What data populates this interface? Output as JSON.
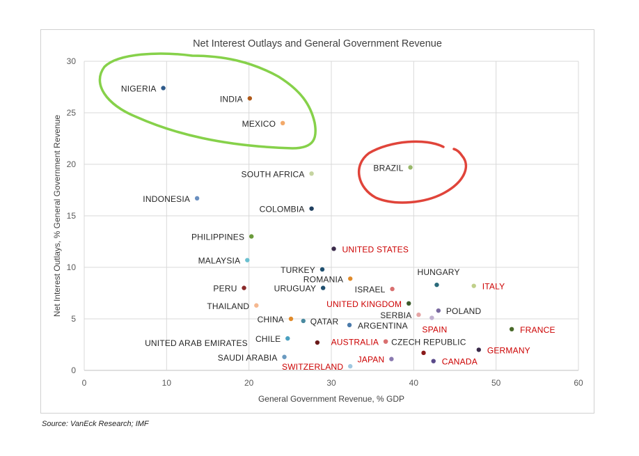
{
  "chart_data": {
    "type": "scatter",
    "title": "Net Interest Outlays and General Government Revenue",
    "xlabel": "General Government Revenue, % GDP",
    "ylabel": "Net Interest Outlays, % General Government Revenue",
    "xlim": [
      0,
      60
    ],
    "ylim": [
      0,
      30
    ],
    "xticks": [
      0,
      10,
      20,
      30,
      40,
      50,
      60
    ],
    "yticks": [
      0,
      5,
      10,
      15,
      20,
      25,
      30
    ],
    "grid": true,
    "points": [
      {
        "label": "NIGERIA",
        "x": 9.6,
        "y": 27.4,
        "color": "#2e5a8a",
        "highlight": false
      },
      {
        "label": "INDIA",
        "x": 20.1,
        "y": 26.4,
        "color": "#b05a1a",
        "highlight": false
      },
      {
        "label": "MEXICO",
        "x": 24.1,
        "y": 24.0,
        "color": "#f2a96a",
        "highlight": false
      },
      {
        "label": "SOUTH AFRICA",
        "x": 27.6,
        "y": 19.1,
        "color": "#c5d4a0",
        "highlight": false
      },
      {
        "label": "BRAZIL",
        "x": 39.6,
        "y": 19.7,
        "color": "#98b86a",
        "highlight": false
      },
      {
        "label": "INDONESIA",
        "x": 13.7,
        "y": 16.7,
        "color": "#6a8fc0",
        "highlight": false
      },
      {
        "label": "COLOMBIA",
        "x": 27.6,
        "y": 15.7,
        "color": "#1f3f5f",
        "highlight": false
      },
      {
        "label": "PHILIPPINES",
        "x": 20.3,
        "y": 13.0,
        "color": "#6a9a3a",
        "highlight": false
      },
      {
        "label": "UNITED STATES",
        "x": 30.3,
        "y": 11.8,
        "color": "#3a2a4a",
        "highlight": true
      },
      {
        "label": "MALAYSIA",
        "x": 19.8,
        "y": 10.7,
        "color": "#6ac0d0",
        "highlight": false
      },
      {
        "label": "TURKEY",
        "x": 28.9,
        "y": 9.8,
        "color": "#1f4f6f",
        "highlight": false
      },
      {
        "label": "ROMANIA",
        "x": 32.3,
        "y": 8.9,
        "color": "#e08a2a",
        "highlight": false
      },
      {
        "label": "HUNGARY",
        "x": 42.8,
        "y": 8.3,
        "color": "#2a6a7a",
        "highlight": false
      },
      {
        "label": "ITALY",
        "x": 47.3,
        "y": 8.2,
        "color": "#c0d08a",
        "highlight": true
      },
      {
        "label": "PERU",
        "x": 19.4,
        "y": 8.0,
        "color": "#8a2a2a",
        "highlight": false
      },
      {
        "label": "URUGUAY",
        "x": 29.0,
        "y": 8.0,
        "color": "#1f4f6f",
        "highlight": false
      },
      {
        "label": "ISRAEL",
        "x": 37.4,
        "y": 7.9,
        "color": "#d97070",
        "highlight": false
      },
      {
        "label": "UNITED KINGDOM",
        "x": 39.4,
        "y": 6.5,
        "color": "#3a5a2a",
        "highlight": true
      },
      {
        "label": "THAILAND",
        "x": 20.9,
        "y": 6.3,
        "color": "#f5b890",
        "highlight": false
      },
      {
        "label": "POLAND",
        "x": 43.0,
        "y": 5.8,
        "color": "#7a6aa0",
        "highlight": false
      },
      {
        "label": "SERBIA",
        "x": 40.6,
        "y": 5.4,
        "color": "#e5a5a5",
        "highlight": false
      },
      {
        "label": "SPAIN",
        "x": 42.2,
        "y": 5.1,
        "color": "#c0b0d0",
        "highlight": true
      },
      {
        "label": "CHINA",
        "x": 25.1,
        "y": 5.0,
        "color": "#e08a2a",
        "highlight": false
      },
      {
        "label": "QATAR",
        "x": 26.6,
        "y": 4.8,
        "color": "#4a8aa0",
        "highlight": false
      },
      {
        "label": "ARGENTINA",
        "x": 32.2,
        "y": 4.4,
        "color": "#4a7aaa",
        "highlight": false
      },
      {
        "label": "FRANCE",
        "x": 51.9,
        "y": 4.0,
        "color": "#4a6a2a",
        "highlight": true
      },
      {
        "label": "CHILE",
        "x": 24.7,
        "y": 3.1,
        "color": "#4aa0c0",
        "highlight": false
      },
      {
        "label": "UNITED ARAB EMIRATES",
        "x": 28.3,
        "y": 2.7,
        "color": "#6a1a1a",
        "highlight": false
      },
      {
        "label": "AUSTRALIA",
        "x": 36.6,
        "y": 2.8,
        "color": "#d97070",
        "highlight": true
      },
      {
        "label": "CZECH REPUBLIC",
        "x": 36.6,
        "y": 2.8,
        "color": "#d97070",
        "highlight": false
      },
      {
        "label": "GERMANY",
        "x": 47.9,
        "y": 2.0,
        "color": "#3a2a4a",
        "highlight": true
      },
      {
        "label": "SWITZERLAND",
        "x": 32.3,
        "y": 0.4,
        "color": "#a0c8e0",
        "highlight": true
      },
      {
        "label": "SAUDI ARABIA",
        "x": 24.3,
        "y": 1.3,
        "color": "#6a9ac0",
        "highlight": false
      },
      {
        "label": "JAPAN",
        "x": 37.3,
        "y": 1.1,
        "color": "#8a7ab0",
        "highlight": true
      },
      {
        "label": "CANADA",
        "x": 42.4,
        "y": 0.9,
        "color": "#5a4a8a",
        "highlight": true
      },
      {
        "label": "",
        "x": 41.2,
        "y": 1.7,
        "color": "#8a1a1a",
        "highlight": false
      }
    ],
    "highlight_color": "#cc0000",
    "label_color": "#262626"
  },
  "source": "Source: VanEck Research; IMF"
}
